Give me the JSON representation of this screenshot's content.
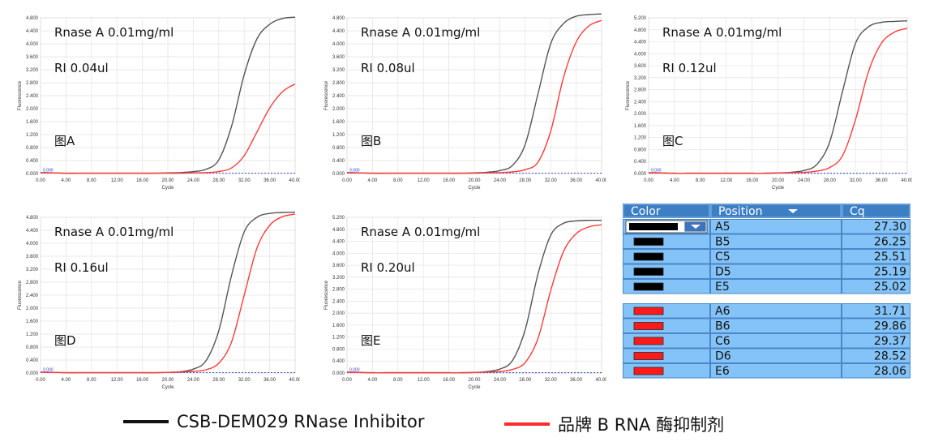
{
  "chart_data": [
    {
      "type": "line",
      "panel_label": "图A",
      "annotation_rnase": "Rnase A 0.01mg/ml",
      "annotation_ri": "RI  0.04ul",
      "xlabel": "Cycle",
      "ylabel": "Fluorescence",
      "xlim": [
        0,
        40
      ],
      "ylim": [
        0,
        4.8
      ],
      "x_ticks": [
        "0.00",
        "4.00",
        "8.00",
        "12.00",
        "16.00",
        "20.00",
        "24.00",
        "28.00",
        "32.00",
        "36.00",
        "40.00"
      ],
      "y_ticks": [
        "0.000",
        "0.400",
        "0.800",
        "1.200",
        "1.600",
        "2.000",
        "2.400",
        "2.800",
        "3.200",
        "3.600",
        "4.000",
        "4.400",
        "4.800"
      ],
      "threshold_label": "0.000",
      "x": [
        0,
        2,
        4,
        6,
        8,
        10,
        12,
        14,
        16,
        18,
        20,
        22,
        24,
        26,
        28,
        30,
        32,
        34,
        36,
        38,
        40
      ],
      "series": [
        {
          "name": "CSB-DEM029 RNase Inhibitor",
          "color": "#555555",
          "values": [
            0.03,
            0.02,
            0.01,
            0.01,
            0.01,
            0.01,
            0.01,
            0.01,
            0.01,
            0.01,
            0.02,
            0.03,
            0.06,
            0.13,
            0.42,
            1.45,
            3.05,
            4.15,
            4.6,
            4.78,
            4.82
          ]
        },
        {
          "name": "品牌 B RNA 酶抑制剂",
          "color": "#ff3b3b",
          "values": [
            0.03,
            0.02,
            0.01,
            0.01,
            0.01,
            0.01,
            0.01,
            0.01,
            0.01,
            0.01,
            0.01,
            0.01,
            0.02,
            0.03,
            0.06,
            0.17,
            0.55,
            1.28,
            2.02,
            2.52,
            2.76
          ]
        }
      ]
    },
    {
      "type": "line",
      "panel_label": "图B",
      "annotation_rnase": "Rnase A 0.01mg/ml",
      "annotation_ri": "RI  0.08ul",
      "xlabel": "Cycle",
      "ylabel": "Fluorescence",
      "xlim": [
        0,
        40
      ],
      "ylim": [
        0,
        4.8
      ],
      "x_ticks": [
        "0.00",
        "4.00",
        "8.00",
        "12.00",
        "16.00",
        "20.00",
        "24.00",
        "28.00",
        "32.00",
        "36.00",
        "40.00"
      ],
      "y_ticks": [
        "0.000",
        "0.400",
        "0.800",
        "1.200",
        "1.600",
        "2.000",
        "2.400",
        "2.800",
        "3.200",
        "3.600",
        "4.000",
        "4.400",
        "4.800"
      ],
      "threshold_label": "0.000",
      "x": [
        0,
        2,
        4,
        6,
        8,
        10,
        12,
        14,
        16,
        18,
        20,
        22,
        24,
        26,
        28,
        30,
        32,
        34,
        36,
        38,
        40
      ],
      "series": [
        {
          "name": "CSB-DEM029 RNase Inhibitor",
          "color": "#555555",
          "values": [
            0.03,
            0.02,
            0.01,
            0.01,
            0.01,
            0.01,
            0.01,
            0.01,
            0.01,
            0.01,
            0.02,
            0.04,
            0.09,
            0.25,
            0.9,
            2.45,
            4.0,
            4.62,
            4.85,
            4.9,
            4.92
          ]
        },
        {
          "name": "品牌 B RNA 酶抑制剂",
          "color": "#ff3b3b",
          "values": [
            0.03,
            0.02,
            0.01,
            0.01,
            0.01,
            0.01,
            0.01,
            0.01,
            0.01,
            0.01,
            0.01,
            0.02,
            0.03,
            0.05,
            0.12,
            0.35,
            1.3,
            2.95,
            4.05,
            4.55,
            4.72
          ]
        }
      ]
    },
    {
      "type": "line",
      "panel_label": "图C",
      "annotation_rnase": "Rnase A 0.01mg/ml",
      "annotation_ri": "RI  0.12ul",
      "xlabel": "Cycle",
      "ylabel": "Fluorescence",
      "xlim": [
        0,
        40
      ],
      "ylim": [
        0,
        5.2
      ],
      "x_ticks": [
        "0.00",
        "4.00",
        "8.00",
        "12.00",
        "16.00",
        "20.00",
        "24.00",
        "28.00",
        "32.00",
        "36.00",
        "40.00"
      ],
      "y_ticks": [
        "0.000",
        "0.400",
        "0.800",
        "1.200",
        "1.600",
        "2.000",
        "2.400",
        "2.800",
        "3.200",
        "3.600",
        "4.000",
        "4.400",
        "4.800",
        "5.200"
      ],
      "threshold_label": "0.000",
      "x": [
        0,
        2,
        4,
        6,
        8,
        10,
        12,
        14,
        16,
        18,
        20,
        22,
        24,
        26,
        28,
        30,
        32,
        34,
        36,
        38,
        40
      ],
      "series": [
        {
          "name": "CSB-DEM029 RNase Inhibitor",
          "color": "#555555",
          "values": [
            0.03,
            0.02,
            0.01,
            0.01,
            0.01,
            0.01,
            0.01,
            0.01,
            0.01,
            0.01,
            0.02,
            0.04,
            0.1,
            0.3,
            1.05,
            2.75,
            4.35,
            4.9,
            5.05,
            5.08,
            5.1
          ]
        },
        {
          "name": "品牌 B RNA 酶抑制剂",
          "color": "#ff3b3b",
          "values": [
            0.03,
            0.02,
            0.01,
            0.01,
            0.01,
            0.01,
            0.01,
            0.01,
            0.01,
            0.01,
            0.02,
            0.03,
            0.04,
            0.08,
            0.2,
            0.6,
            1.8,
            3.4,
            4.35,
            4.72,
            4.85
          ]
        }
      ]
    },
    {
      "type": "line",
      "panel_label": "图D",
      "annotation_rnase": "Rnase A 0.01mg/ml",
      "annotation_ri": "RI  0.16ul",
      "xlabel": "Cycle",
      "ylabel": "Fluorescence",
      "xlim": [
        0,
        40
      ],
      "ylim": [
        0,
        4.8
      ],
      "x_ticks": [
        "0.00",
        "4.00",
        "8.00",
        "12.00",
        "16.00",
        "20.00",
        "24.00",
        "28.00",
        "32.00",
        "36.00",
        "40.00"
      ],
      "y_ticks": [
        "0.000",
        "0.400",
        "0.800",
        "1.200",
        "1.600",
        "2.000",
        "2.400",
        "2.800",
        "3.200",
        "3.600",
        "4.000",
        "4.400",
        "4.800"
      ],
      "threshold_label": "0.000",
      "x": [
        0,
        2,
        4,
        6,
        8,
        10,
        12,
        14,
        16,
        18,
        20,
        22,
        24,
        26,
        28,
        30,
        32,
        34,
        36,
        38,
        40
      ],
      "series": [
        {
          "name": "CSB-DEM029 RNase Inhibitor",
          "color": "#555555",
          "values": [
            0.03,
            0.02,
            0.01,
            0.01,
            0.01,
            0.01,
            0.01,
            0.01,
            0.01,
            0.01,
            0.02,
            0.04,
            0.12,
            0.38,
            1.3,
            3.0,
            4.35,
            4.8,
            4.92,
            4.95,
            4.96
          ]
        },
        {
          "name": "品牌 B RNA 酶抑制剂",
          "color": "#ff3b3b",
          "values": [
            0.03,
            0.02,
            0.01,
            0.01,
            0.01,
            0.01,
            0.01,
            0.01,
            0.01,
            0.01,
            0.02,
            0.03,
            0.05,
            0.1,
            0.3,
            0.95,
            2.4,
            3.85,
            4.55,
            4.82,
            4.9
          ]
        }
      ]
    },
    {
      "type": "line",
      "panel_label": "图E",
      "annotation_rnase": "Rnase A 0.01mg/ml",
      "annotation_ri": "RI  0.20ul",
      "xlabel": "Cycle",
      "ylabel": "Fluorescence",
      "xlim": [
        0,
        40
      ],
      "ylim": [
        0,
        5.2
      ],
      "x_ticks": [
        "0.00",
        "4.00",
        "8.00",
        "12.00",
        "16.00",
        "20.00",
        "24.00",
        "28.00",
        "32.00",
        "36.00",
        "40.00"
      ],
      "y_ticks": [
        "0.000",
        "0.400",
        "0.800",
        "1.200",
        "1.600",
        "2.000",
        "2.400",
        "2.800",
        "3.200",
        "3.600",
        "4.000",
        "4.400",
        "4.800",
        "5.200"
      ],
      "threshold_label": "0.000",
      "x": [
        0,
        2,
        4,
        6,
        8,
        10,
        12,
        14,
        16,
        18,
        20,
        22,
        24,
        26,
        28,
        30,
        32,
        34,
        36,
        38,
        40
      ],
      "series": [
        {
          "name": "CSB-DEM029 RNase Inhibitor",
          "color": "#555555",
          "values": [
            0.03,
            0.02,
            0.01,
            0.01,
            0.01,
            0.01,
            0.01,
            0.01,
            0.01,
            0.01,
            0.02,
            0.05,
            0.13,
            0.42,
            1.45,
            3.3,
            4.6,
            5.0,
            5.08,
            5.1,
            5.1
          ]
        },
        {
          "name": "品牌 B RNA 酶抑制剂",
          "color": "#ff3b3b",
          "values": [
            0.03,
            0.02,
            0.01,
            0.01,
            0.01,
            0.01,
            0.01,
            0.01,
            0.01,
            0.01,
            0.02,
            0.03,
            0.05,
            0.12,
            0.35,
            1.15,
            2.75,
            4.05,
            4.65,
            4.88,
            4.95
          ]
        }
      ]
    }
  ],
  "cq_table": {
    "headers": {
      "color": "Color",
      "position": "Position",
      "cq": "Cq"
    },
    "group_black": {
      "swatch_color": "#000000",
      "rows": [
        {
          "position": "A5",
          "cq": "27.30"
        },
        {
          "position": "B5",
          "cq": "26.25"
        },
        {
          "position": "C5",
          "cq": "25.51"
        },
        {
          "position": "D5",
          "cq": "25.19"
        },
        {
          "position": "E5",
          "cq": "25.02"
        }
      ]
    },
    "group_red": {
      "swatch_color": "#ff1a1a",
      "rows": [
        {
          "position": "A6",
          "cq": "31.71"
        },
        {
          "position": "B6",
          "cq": "29.86"
        },
        {
          "position": "C6",
          "cq": "29.37"
        },
        {
          "position": "D6",
          "cq": "28.52"
        },
        {
          "position": "E6",
          "cq": "28.06"
        }
      ]
    },
    "colors": {
      "header_bg": "#3e7fc4",
      "row_bg": "#84c3f7",
      "border": "#2d6bb3"
    }
  },
  "legend": {
    "items": [
      {
        "label": "CSB-DEM029 RNase Inhibitor",
        "color": "#111111"
      },
      {
        "label": "品牌 B RNA 酶抑制剂",
        "color": "#ff2a2a"
      }
    ]
  }
}
